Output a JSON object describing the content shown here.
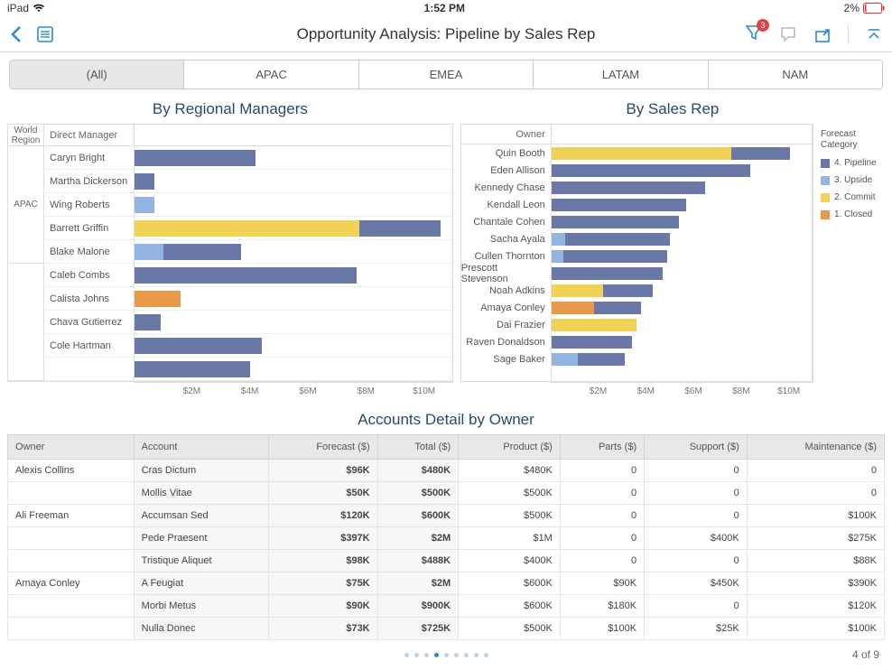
{
  "status": {
    "device": "iPad",
    "time": "1:52 PM",
    "battery": "2%"
  },
  "header": {
    "title": "Opportunity Analysis: Pipeline by Sales Rep",
    "filter_badge": "3"
  },
  "tabs": [
    "(All)",
    "APAC",
    "EMEA",
    "LATAM",
    "NAM"
  ],
  "active_tab": 0,
  "colors": {
    "pipeline": "#6a78a8",
    "upside": "#93b4e0",
    "commit": "#f2d254",
    "closed": "#e89a4a",
    "accent": "#2a8ad4",
    "grid": "#dddddd"
  },
  "managers_chart": {
    "title": "By Regional Managers",
    "region_header": "World\nRegion",
    "manager_header": "Direct Manager",
    "x_max": 11,
    "x_ticks": [
      2,
      4,
      6,
      8,
      10
    ],
    "x_tick_labels": [
      "$2M",
      "$4M",
      "$6M",
      "$8M",
      "$10M"
    ],
    "groups": [
      {
        "region": "APAC",
        "rows": [
          {
            "name": "Caryn Bright",
            "segs": [
              {
                "c": "pipeline",
                "v": 4.2
              }
            ]
          },
          {
            "name": "Martha Dickerson",
            "segs": [
              {
                "c": "pipeline",
                "v": 0.7
              }
            ]
          },
          {
            "name": "Wing Roberts",
            "segs": [
              {
                "c": "upside",
                "v": 0.7
              }
            ]
          }
        ]
      },
      {
        "region": "",
        "rows": [
          {
            "name": "Barrett Griffin",
            "segs": [
              {
                "c": "commit",
                "v": 7.8
              },
              {
                "c": "pipeline",
                "v": 2.8
              }
            ]
          },
          {
            "name": "Blake Malone",
            "segs": [
              {
                "c": "upside",
                "v": 1.0
              },
              {
                "c": "pipeline",
                "v": 2.7
              }
            ]
          },
          {
            "name": "Caleb Combs",
            "segs": [
              {
                "c": "pipeline",
                "v": 7.7
              }
            ]
          },
          {
            "name": "Calista Johns",
            "segs": [
              {
                "c": "closed",
                "v": 1.6
              }
            ]
          },
          {
            "name": "Chava Gutierrez",
            "segs": [
              {
                "c": "pipeline",
                "v": 0.9
              }
            ]
          },
          {
            "name": "Cole Hartman",
            "segs": [
              {
                "c": "pipeline",
                "v": 4.4
              }
            ]
          },
          {
            "name": "",
            "segs": [
              {
                "c": "pipeline",
                "v": 4.0
              }
            ]
          }
        ]
      }
    ]
  },
  "reps_chart": {
    "title": "By Sales Rep",
    "owner_header": "Owner",
    "x_max": 11,
    "x_ticks": [
      2,
      4,
      6,
      8,
      10
    ],
    "x_tick_labels": [
      "$2M",
      "$4M",
      "$6M",
      "$8M",
      "$10M"
    ],
    "rows": [
      {
        "name": "Quin Booth",
        "segs": [
          {
            "c": "commit",
            "v": 7.6
          },
          {
            "c": "pipeline",
            "v": 2.5
          }
        ]
      },
      {
        "name": "Eden Allison",
        "segs": [
          {
            "c": "pipeline",
            "v": 8.4
          }
        ]
      },
      {
        "name": "Kennedy Chase",
        "segs": [
          {
            "c": "pipeline",
            "v": 6.5
          }
        ]
      },
      {
        "name": "Kendall Leon",
        "segs": [
          {
            "c": "pipeline",
            "v": 5.7
          }
        ]
      },
      {
        "name": "Chantale Cohen",
        "segs": [
          {
            "c": "pipeline",
            "v": 5.4
          }
        ]
      },
      {
        "name": "Sacha Ayala",
        "segs": [
          {
            "c": "upside",
            "v": 0.6
          },
          {
            "c": "pipeline",
            "v": 4.4
          }
        ]
      },
      {
        "name": "Cullen Thornton",
        "segs": [
          {
            "c": "upside",
            "v": 0.5
          },
          {
            "c": "pipeline",
            "v": 4.4
          }
        ]
      },
      {
        "name": "Prescott Stevenson",
        "segs": [
          {
            "c": "pipeline",
            "v": 4.7
          }
        ]
      },
      {
        "name": "Noah Adkins",
        "segs": [
          {
            "c": "commit",
            "v": 2.2
          },
          {
            "c": "pipeline",
            "v": 2.1
          }
        ]
      },
      {
        "name": "Amaya Conley",
        "segs": [
          {
            "c": "closed",
            "v": 1.8
          },
          {
            "c": "pipeline",
            "v": 2.0
          }
        ]
      },
      {
        "name": "Dai Frazier",
        "segs": [
          {
            "c": "commit",
            "v": 3.6
          }
        ]
      },
      {
        "name": "Raven Donaldson",
        "segs": [
          {
            "c": "pipeline",
            "v": 3.4
          }
        ]
      },
      {
        "name": "Sage Baker",
        "segs": [
          {
            "c": "upside",
            "v": 1.1
          },
          {
            "c": "pipeline",
            "v": 2.0
          }
        ]
      }
    ]
  },
  "legend": {
    "title": "Forecast\nCategory",
    "items": [
      {
        "label": "4. Pipeline",
        "c": "pipeline"
      },
      {
        "label": "3. Upside",
        "c": "upside"
      },
      {
        "label": "2. Commit",
        "c": "commit"
      },
      {
        "label": "1. Closed",
        "c": "closed"
      }
    ]
  },
  "detail": {
    "title": "Accounts Detail by Owner",
    "columns": [
      "Owner",
      "Account",
      "Forecast ($)",
      "Total ($)",
      "Product ($)",
      "Parts ($)",
      "Support ($)",
      "Maintenance ($)"
    ],
    "rows": [
      {
        "owner": "Alexis Collins",
        "account": "Cras Dictum",
        "forecast": "$96K",
        "total": "$480K",
        "product": "$480K",
        "parts": "0",
        "support": "0",
        "maint": "0"
      },
      {
        "owner": "",
        "account": "Mollis Vitae",
        "forecast": "$50K",
        "total": "$500K",
        "product": "$500K",
        "parts": "0",
        "support": "0",
        "maint": "0"
      },
      {
        "owner": "Ali Freeman",
        "account": "Accumsan Sed",
        "forecast": "$120K",
        "total": "$600K",
        "product": "$500K",
        "parts": "0",
        "support": "0",
        "maint": "$100K"
      },
      {
        "owner": "",
        "account": "Pede Praesent",
        "forecast": "$397K",
        "total": "$2M",
        "product": "$1M",
        "parts": "0",
        "support": "$400K",
        "maint": "$275K"
      },
      {
        "owner": "",
        "account": "Tristique Aliquet",
        "forecast": "$98K",
        "total": "$488K",
        "product": "$400K",
        "parts": "0",
        "support": "0",
        "maint": "$88K"
      },
      {
        "owner": "Amaya Conley",
        "account": "A Feugiat",
        "forecast": "$75K",
        "total": "$2M",
        "product": "$600K",
        "parts": "$90K",
        "support": "$450K",
        "maint": "$390K"
      },
      {
        "owner": "",
        "account": "Morbi Metus",
        "forecast": "$90K",
        "total": "$900K",
        "product": "$600K",
        "parts": "$180K",
        "support": "0",
        "maint": "$120K"
      },
      {
        "owner": "",
        "account": "Nulla Donec",
        "forecast": "$73K",
        "total": "$725K",
        "product": "$500K",
        "parts": "$100K",
        "support": "$25K",
        "maint": "$100K"
      }
    ]
  },
  "footer": {
    "page_label": "4 of 9",
    "dot_count": 9,
    "active_dot": 3
  }
}
